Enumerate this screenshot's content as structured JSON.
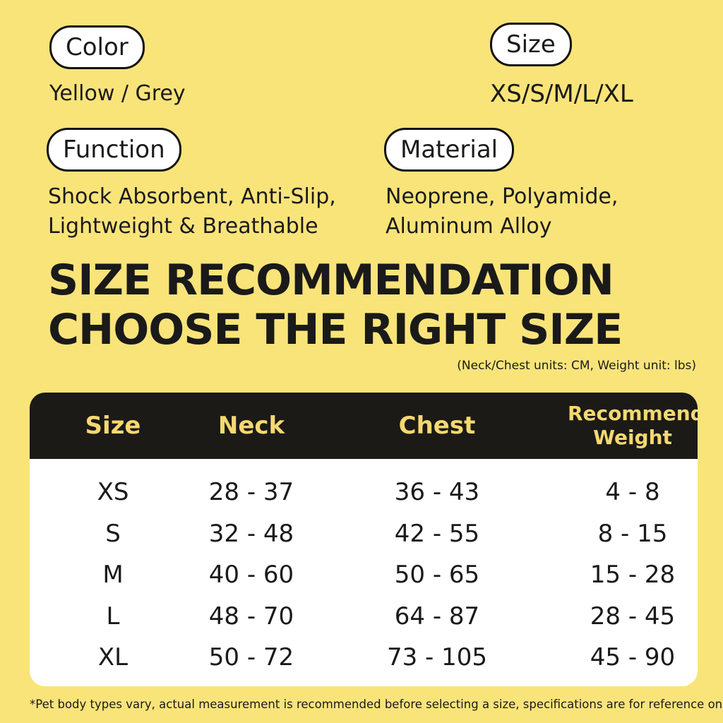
{
  "specs": [
    {
      "label": "Color",
      "value": "Yellow / Grey"
    },
    {
      "label": "Size",
      "value": "XS/S/M/L/XL"
    },
    {
      "label": "Function",
      "value": [
        "Shock Absorbent, Anti-Slip,",
        "Lightweight & Breathable"
      ]
    },
    {
      "label": "Material",
      "value": [
        "Neoprene, Polyamide,",
        "Aluminum Alloy"
      ]
    }
  ],
  "headline": [
    "SIZE RECOMMENDATION",
    "CHOOSE THE RIGHT SIZE"
  ],
  "units_note": "(Neck/Chest units: CM, Weight unit: lbs)",
  "table": {
    "columns": [
      "Size",
      "Neck",
      "Chest",
      [
        "Recommended",
        "Weight"
      ]
    ],
    "rows": [
      [
        "XS",
        "28 - 37",
        "36 - 43",
        "4 - 8"
      ],
      [
        "S",
        "32 - 48",
        "42 - 55",
        "8 - 15"
      ],
      [
        "M",
        "40 - 60",
        "50 - 65",
        "15 - 28"
      ],
      [
        "L",
        "48 - 70",
        "64 - 87",
        "28 - 45"
      ],
      [
        "XL",
        "50 - 72",
        "73 - 105",
        "45 - 90"
      ]
    ]
  },
  "footnote": "*Pet body types vary, actual measurement is recommended before selecting a size, specifications are for reference only"
}
